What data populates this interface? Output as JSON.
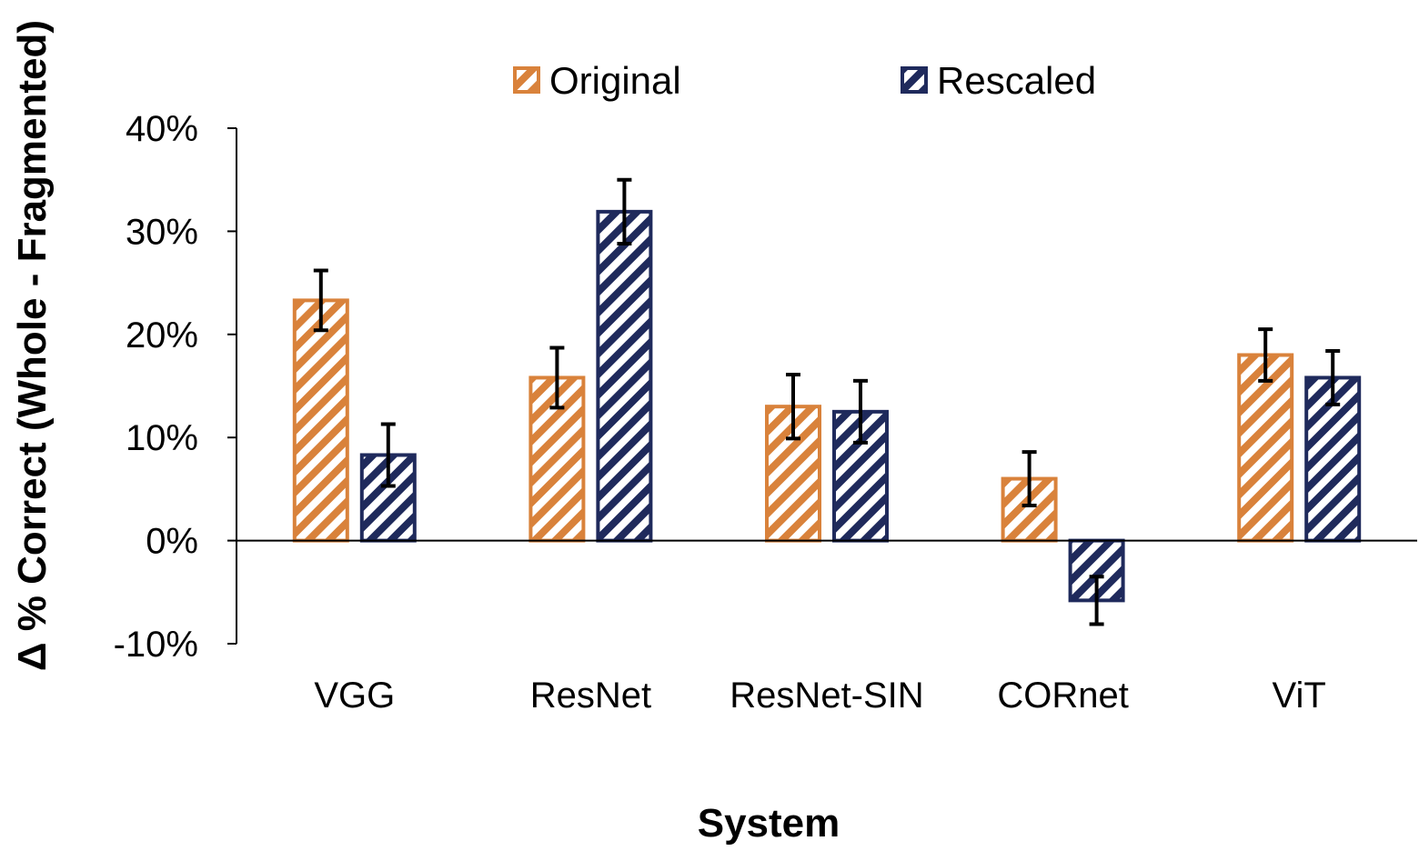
{
  "chart_data": {
    "type": "bar",
    "xlabel": "System",
    "ylabel": "Δ % Correct (Whole - Fragmented)",
    "ylim": [
      -10,
      40
    ],
    "yticks": [
      -10,
      0,
      10,
      20,
      30,
      40
    ],
    "ytick_labels": [
      "-10%",
      "0%",
      "10%",
      "20%",
      "30%",
      "40%"
    ],
    "categories": [
      "VGG",
      "ResNet",
      "ResNet-SIN",
      "CORnet",
      "ViT"
    ],
    "series": [
      {
        "name": "Original",
        "color": "#d9823b",
        "pattern": "diagonal-hatch",
        "values": [
          23.3,
          15.8,
          13.0,
          6.0,
          18.0
        ],
        "error": [
          2.9,
          2.9,
          3.1,
          2.6,
          2.5
        ]
      },
      {
        "name": "Rescaled",
        "color": "#1f2a5c",
        "pattern": "diagonal-hatch",
        "values": [
          8.3,
          31.9,
          12.5,
          -5.8,
          15.8
        ],
        "error": [
          3.0,
          3.1,
          3.0,
          2.3,
          2.6
        ]
      }
    ],
    "grid": false,
    "legend_position": "top"
  }
}
